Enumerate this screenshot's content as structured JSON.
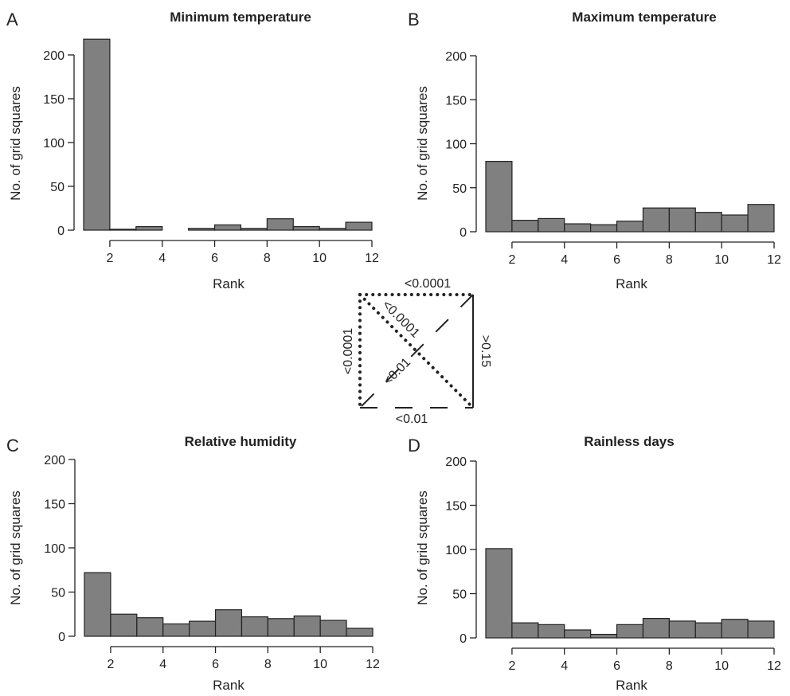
{
  "chart_data": [
    {
      "panel": "A",
      "type": "bar",
      "title": "Minimum temperature",
      "xlabel": "Rank",
      "ylabel": "No. of grid squares",
      "bin_edges": [
        1,
        2,
        3,
        4,
        5,
        6,
        7,
        8,
        9,
        10,
        11,
        12
      ],
      "values": [
        218,
        1,
        4,
        0,
        2,
        6,
        2,
        13,
        4,
        2,
        9
      ],
      "xticks": [
        2,
        4,
        6,
        8,
        10,
        12
      ],
      "yticks": [
        0,
        50,
        100,
        150,
        200
      ],
      "xlim": [
        1,
        12
      ],
      "ylim": [
        0,
        200
      ]
    },
    {
      "panel": "B",
      "type": "bar",
      "title": "Maximum temperature",
      "xlabel": "Rank",
      "ylabel": "No. of grid squares",
      "bin_edges": [
        1,
        2,
        3,
        4,
        5,
        6,
        7,
        8,
        9,
        10,
        11,
        12
      ],
      "values": [
        80,
        13,
        15,
        9,
        8,
        12,
        27,
        27,
        22,
        19,
        31
      ],
      "xticks": [
        2,
        4,
        6,
        8,
        10,
        12
      ],
      "yticks": [
        0,
        50,
        100,
        150,
        200
      ],
      "xlim": [
        1,
        12
      ],
      "ylim": [
        0,
        200
      ]
    },
    {
      "panel": "C",
      "type": "bar",
      "title": "Relative humidity",
      "xlabel": "Rank",
      "ylabel": "No. of grid squares",
      "bin_edges": [
        1,
        2,
        3,
        4,
        5,
        6,
        7,
        8,
        9,
        10,
        11,
        12
      ],
      "values": [
        72,
        25,
        21,
        14,
        17,
        30,
        22,
        20,
        23,
        18,
        9
      ],
      "xticks": [
        2,
        4,
        6,
        8,
        10,
        12
      ],
      "yticks": [
        0,
        50,
        100,
        150,
        200
      ],
      "xlim": [
        1,
        12
      ],
      "ylim": [
        0,
        200
      ]
    },
    {
      "panel": "D",
      "type": "bar",
      "title": "Rainless days",
      "xlabel": "Rank",
      "ylabel": "No. of grid squares",
      "bin_edges": [
        1,
        2,
        3,
        4,
        5,
        6,
        7,
        8,
        9,
        10,
        11,
        12
      ],
      "values": [
        101,
        17,
        15,
        9,
        4,
        15,
        22,
        19,
        17,
        21,
        19
      ],
      "xticks": [
        2,
        4,
        6,
        8,
        10,
        12
      ],
      "yticks": [
        0,
        50,
        100,
        150,
        200
      ],
      "xlim": [
        1,
        12
      ],
      "ylim": [
        0,
        200
      ]
    }
  ],
  "comparison_diagram": {
    "links": [
      {
        "from": "A",
        "to": "B",
        "label": "<0.0001",
        "style": "dotted"
      },
      {
        "from": "A",
        "to": "C",
        "label": "<0.0001",
        "style": "dotted"
      },
      {
        "from": "A",
        "to": "D",
        "label": "<0.0001",
        "style": "dotted"
      },
      {
        "from": "B",
        "to": "C",
        "label": "<0.01",
        "style": "dashed"
      },
      {
        "from": "B",
        "to": "D",
        "label": ">0.15",
        "style": "solid"
      },
      {
        "from": "C",
        "to": "D",
        "label": "<0.01",
        "style": "dashed"
      }
    ]
  }
}
